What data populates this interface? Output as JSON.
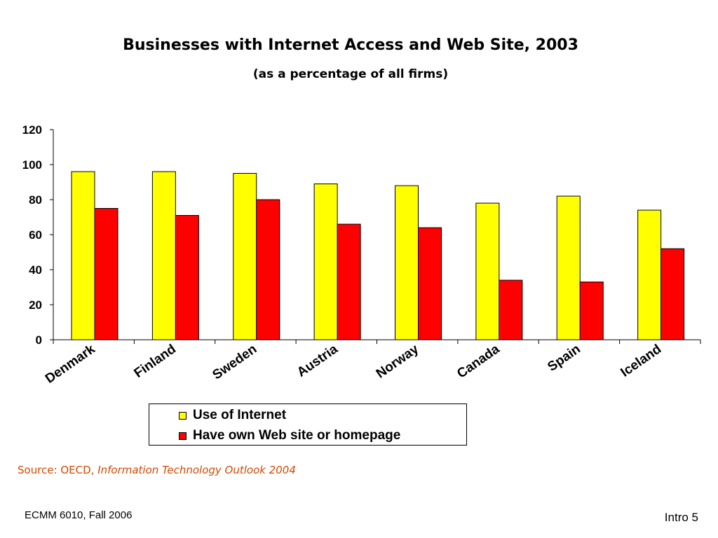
{
  "slide": {
    "title": "Businesses with Internet Access and Web Site, 2003",
    "subtitle": "(as a percentage of all firms)"
  },
  "chart_data": {
    "type": "bar",
    "categories": [
      "Denmark",
      "Finland",
      "Sweden",
      "Austria",
      "Norway",
      "Canada",
      "Spain",
      "Iceland"
    ],
    "series": [
      {
        "name": "Use of Internet",
        "color": "#ffff00",
        "values": [
          96,
          96,
          95,
          89,
          88,
          78,
          82,
          74
        ]
      },
      {
        "name": "Have own Web site or homepage",
        "color": "#ff0000",
        "values": [
          75,
          71,
          80,
          66,
          64,
          34,
          33,
          52
        ]
      }
    ],
    "ylim": [
      0,
      120
    ],
    "yticks": [
      0,
      20,
      40,
      60,
      80,
      100,
      120
    ],
    "grid": false,
    "legend_position": "bottom"
  },
  "source": {
    "prefix": "Source: OECD, ",
    "title": "Information Technology Outlook 2004"
  },
  "footer": {
    "left": "ECMM 6010, Fall 2006",
    "right": "Intro 5"
  }
}
